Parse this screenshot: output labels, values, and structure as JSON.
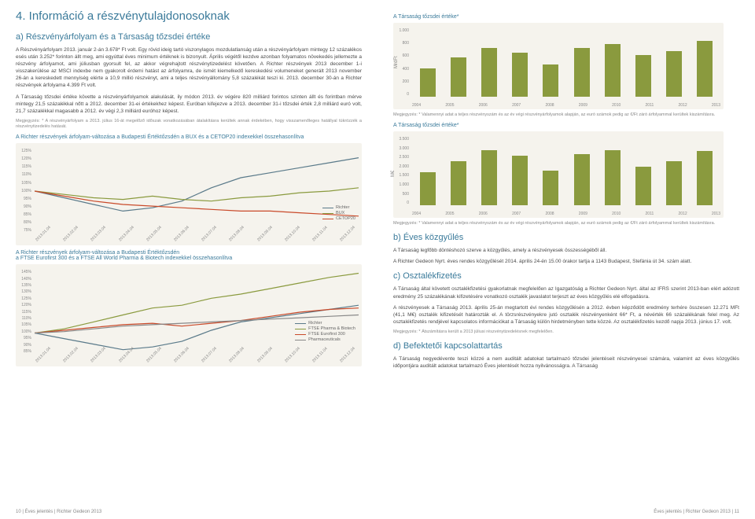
{
  "left_page": {
    "h1": "4. Információ a részvénytulajdonosoknak",
    "h2_a": "a) Részvényárfolyam és a Társaság tőzsdei értéke",
    "p1": "A Részvényárfolyam 2013. január 2-án 3.678* Ft volt. Egy rövid ideig tartó viszonylagos mozdulatlanság után a részvényárfolyam mintegy 12 százalékos esés után 3.252* forinton állt meg, ami egyúttal éves minimum értéknek is bizonyult. Április végétől kezdve azonban folyamatos növekedés jellemezte a részvény árfolyamot, ami júliusban gyorsult fel, az akkor végrehajtott részvénytizedelést követően. A Richter részvények 2013 december 1-i visszakerülése az MSCI indexbe nem gyakorolt érdemi hatást az árfolyamra, de ismét kiemelkedő kereskedési volumeneket generált 2013 november 26-án a kereskedett mennyiség elérte a 10,9 millió részvényt, ami a teljes részvényállomány 5,8 százalékát teszi ki. 2013. december 30-án a Richter részvények árfolyama 4.399 Ft volt.",
    "p2": "A Társaság tőzsdei értéke követte a részvényárfolyamok alakulását, ily módon 2013. év végére 820 milliárd forintos szinten állt és forintban mérve mintegy 21,5 százalékkal nőtt a 2012. december 31-ei értékekhez képest. Euróban kifejezve a 2013. december 31-i tőzsdei érték 2,8 milliárd euró volt, 21,7 százalékkal magasabb a 2012. év végi 2,3 milliárd euróhoz képest.",
    "note1": "Megjegyzés: * A részvényárfolyam a 2013. július 16-át megelőző időszak vonatkozásában átalakításra kerültek annak érdekében, hogy visszamenőleges hatállyal tükrözzék a részvénytizedelés hatását.",
    "chart1": {
      "title": "A Richter részvények árfolyam-változása a Budapesti Értéktőzsdén a BUX és a CETOP20 indexekkel összehasonlítva",
      "y_ticks": [
        "125%",
        "120%",
        "115%",
        "110%",
        "105%",
        "100%",
        "95%",
        "90%",
        "85%",
        "80%",
        "75%"
      ],
      "x_ticks": [
        "2013.01.04",
        "2013.02.04",
        "2013.03.04",
        "2013.04.04",
        "2013.05.04",
        "2013.06.04",
        "2013.07.04",
        "2013.08.04",
        "2013.09.04",
        "2013.10.04",
        "2013.11.04",
        "2013.12.04"
      ],
      "legend": [
        "Richter",
        "BUX",
        "CETOP20"
      ],
      "colors": [
        "#5a7a8a",
        "#8a9a3e",
        "#c94a2a"
      ],
      "series": {
        "richter": [
          100,
          96,
          92,
          88,
          90,
          94,
          102,
          108,
          111,
          114,
          117,
          120
        ],
        "bux": [
          100,
          98,
          96,
          95,
          97,
          95,
          94,
          96,
          97,
          99,
          100,
          102
        ],
        "cetop20": [
          100,
          97,
          94,
          92,
          91,
          90,
          89,
          88,
          88,
          87,
          86,
          85
        ]
      }
    },
    "chart2": {
      "title_line1": "A Richter részvények árfolyam-változása a Budapesti Értéktőzsdén",
      "title_line2": "a FTSE Eurofirst 300 és a FTSE All World Pharma & Biotech indexekkel összehasonlítva",
      "y_ticks": [
        "145%",
        "140%",
        "135%",
        "130%",
        "125%",
        "120%",
        "115%",
        "110%",
        "105%",
        "100%",
        "95%",
        "90%",
        "85%"
      ],
      "x_ticks": [
        "2013.01.04",
        "2013.02.04",
        "2013.03.04",
        "2013.04.04",
        "2013.05.04",
        "2013.06.04",
        "2013.07.04",
        "2013.08.04",
        "2013.09.04",
        "2013.10.04",
        "2013.11.04",
        "2013.12.04"
      ],
      "legend": [
        "Richter",
        "FTSE Pharma & Biotech",
        "FTSE Eurofirst 300",
        "Pharmaceuticals"
      ],
      "colors": [
        "#5a7a8a",
        "#8a9a3e",
        "#c94a2a",
        "#888888"
      ],
      "series": {
        "richter": [
          100,
          96,
          92,
          88,
          90,
          94,
          102,
          108,
          111,
          114,
          117,
          120
        ],
        "ftse_pb": [
          100,
          103,
          108,
          113,
          118,
          120,
          125,
          128,
          132,
          136,
          140,
          143
        ],
        "ftse300": [
          100,
          102,
          104,
          106,
          107,
          105,
          107,
          109,
          112,
          115,
          117,
          118
        ],
        "pharma": [
          100,
          101,
          103,
          105,
          106,
          107,
          108,
          109,
          110,
          111,
          112,
          113
        ]
      }
    },
    "footer": "10 | Éves jelentés | Richter Gedeon 2013"
  },
  "right_page": {
    "bar_chart1": {
      "title": "A Társaság tőzsdei értéke*",
      "y_label": "MrdFt",
      "y_ticks": [
        "1.000",
        "800",
        "600",
        "400",
        "200",
        "0"
      ],
      "x_ticks": [
        "2004",
        "2005",
        "2006",
        "2007",
        "2008",
        "2009",
        "2010",
        "2011",
        "2012",
        "2013"
      ],
      "values": [
        420,
        580,
        720,
        650,
        480,
        720,
        780,
        620,
        670,
        820
      ],
      "max": 1000,
      "bar_color": "#8a9a3e",
      "note": "Megjegyzés: * Valamennyi adat a teljes részvényszám és az év végi részvényárfolyamok alapján, az euró számok pedig az €/Ft záró árfolyammal kerültek kiszámításra."
    },
    "bar_chart2": {
      "title": "A Társaság tőzsdei értéke*",
      "y_label": "M€",
      "y_ticks": [
        "3.500",
        "3.000",
        "2.500",
        "2.000",
        "1.500",
        "1.000",
        "500",
        "0"
      ],
      "x_ticks": [
        "2004",
        "2005",
        "2006",
        "2007",
        "2008",
        "2009",
        "2010",
        "2011",
        "2012",
        "2013"
      ],
      "values": [
        1700,
        2300,
        2850,
        2550,
        1800,
        2650,
        2850,
        2000,
        2300,
        2800
      ],
      "max": 3500,
      "bar_color": "#8a9a3e",
      "note": "Megjegyzés: * Valamennyi adat a teljes részvényszám és az év végi részvényárfolyamok alapján, az euró számok pedig az €/Ft záró árfolyammal kerültek kiszámításra."
    },
    "h2_b": "b) Éves közgyűlés",
    "p_b1": "A Társaság legfőbb döntéshozó szerve a közgyűlés, amely a részvényesek összességéből áll.",
    "p_b2": "A Richter Gedeon Nyrt. éves rendes közgyűlését 2014. április 24-én 15.00 órakor tartja a 1143 Budapest, Stefánia út 34. szám alatt.",
    "h2_c": "c) Osztalékfizetés",
    "p_c1": "A Társaság által követett osztalékfizetési gyakorlatnak megfelelően az Igazgatóság a Richter Gedeon Nyrt. által az IFRS szerint 2013-ban elért adózott eredmény 25 százalékának kifizetésére vonatkozó osztalék javaslatot terjeszt az éves közgyűlés elé elfogadásra.",
    "p_c2": "A részvényesek a Társaság 2013. április 25-án megtartott évi rendes közgyűlésén a 2012. évben képződött eredmény terhére összesen 12.271 MFt (41,1 M€) osztalék kifizetését határozták el. A törzsrészvényekre jutó osztalék részvényenként 66* Ft, a névérték 66 százalékának felel meg. Az osztalékfizetés rendjével kapcsolatos információkat a Társaság külön hirdetményben tette közzé. Az osztalékfizetés kezdő napja 2013. június 17. volt.",
    "note_c": "Megjegyzés: * Átszámításra került a 2013 júliusi részvénytizedelésnek megfelelően.",
    "h2_d": "d) Befektetői kapcsolattartás",
    "p_d": "A Társaság negyedévente teszi közzé a nem auditált adatokat tartalmazó tőzsdei jelentéseit részvényesei számára, valamint az éves közgyűlés időpontjára auditált adatokat tartalmazó Éves jelentését hozza nyilvánosságra. A Társaság",
    "footer": "Éves jelentés | Richter Gedeon 2013 | 11"
  }
}
